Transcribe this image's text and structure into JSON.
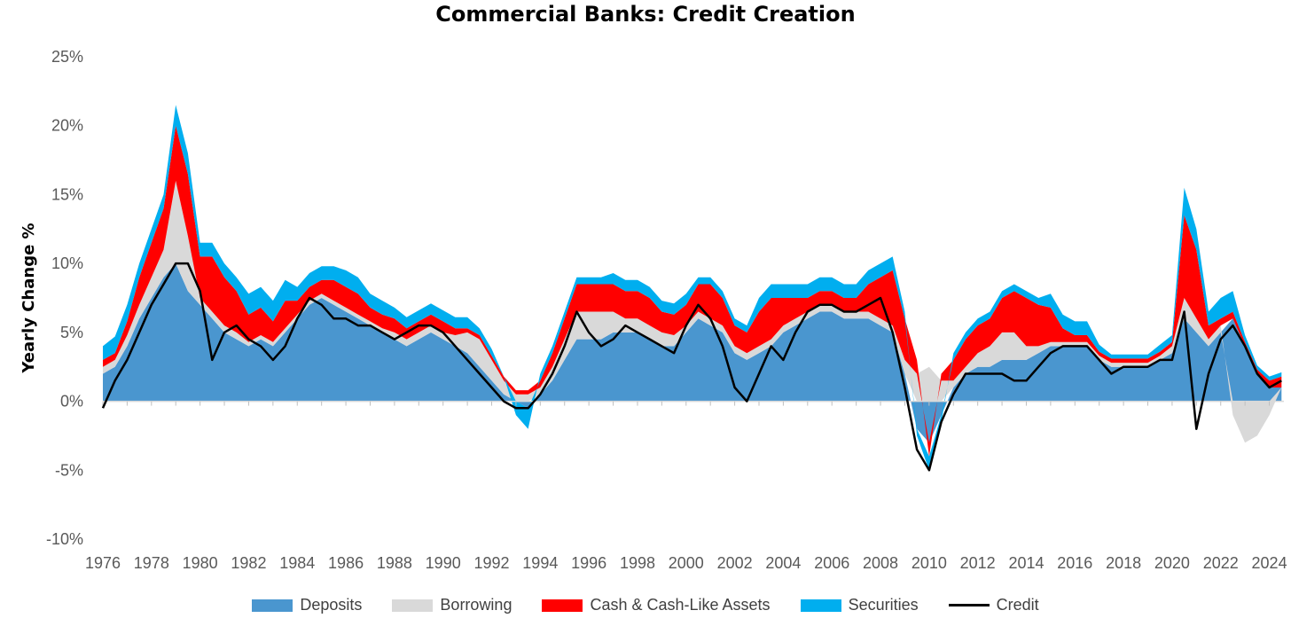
{
  "chart_data": {
    "type": "area",
    "title": "Commercial Banks: Credit Creation",
    "ylabel": "Yearly Change %",
    "xlabel": "",
    "xlim": [
      1976,
      2024.6
    ],
    "ylim": [
      -10,
      25
    ],
    "x_ticks": [
      "1976",
      "1978",
      "1980",
      "1982",
      "1984",
      "1986",
      "1988",
      "1990",
      "1992",
      "1994",
      "1996",
      "1998",
      "2000",
      "2002",
      "2004",
      "2006",
      "2008",
      "2010",
      "2012",
      "2014",
      "2016",
      "2018",
      "2020",
      "2022",
      "2024"
    ],
    "y_ticks": [
      "-10%",
      "-5%",
      "0%",
      "5%",
      "10%",
      "15%",
      "20%",
      "25%"
    ],
    "legend_position": "bottom",
    "colors": {
      "Deposits": "#4a96cf",
      "Borrowing": "#d9d9d9",
      "Cash & Cash-Like Assets": "#ff0000",
      "Securities": "#00aeef",
      "Credit": "#000000"
    },
    "x": [
      1976.0,
      1976.5,
      1977.0,
      1977.5,
      1978.0,
      1978.5,
      1979.0,
      1979.5,
      1980.0,
      1980.5,
      1981.0,
      1981.5,
      1982.0,
      1982.5,
      1983.0,
      1983.5,
      1984.0,
      1984.5,
      1985.0,
      1985.5,
      1986.0,
      1986.5,
      1987.0,
      1987.5,
      1988.0,
      1988.5,
      1989.0,
      1989.5,
      1990.0,
      1990.5,
      1991.0,
      1991.5,
      1992.0,
      1992.5,
      1993.0,
      1993.5,
      1994.0,
      1994.5,
      1995.0,
      1995.5,
      1996.0,
      1996.5,
      1997.0,
      1997.5,
      1998.0,
      1998.5,
      1999.0,
      1999.5,
      2000.0,
      2000.5,
      2001.0,
      2001.5,
      2002.0,
      2002.5,
      2003.0,
      2003.5,
      2004.0,
      2004.5,
      2005.0,
      2005.5,
      2006.0,
      2006.5,
      2007.0,
      2007.5,
      2008.0,
      2008.5,
      2009.0,
      2009.5,
      2010.0,
      2010.5,
      2011.0,
      2011.5,
      2012.0,
      2012.5,
      2013.0,
      2013.5,
      2014.0,
      2014.5,
      2015.0,
      2015.5,
      2016.0,
      2016.5,
      2017.0,
      2017.5,
      2018.0,
      2018.5,
      2019.0,
      2019.5,
      2020.0,
      2020.5,
      2021.0,
      2021.5,
      2022.0,
      2022.5,
      2023.0,
      2023.5,
      2024.0,
      2024.5
    ],
    "series": [
      {
        "name": "Deposits",
        "values": [
          2.0,
          2.5,
          4.0,
          6.0,
          7.5,
          9.0,
          10.0,
          8.0,
          7.0,
          6.0,
          5.0,
          4.5,
          4.0,
          4.5,
          4.0,
          5.0,
          6.0,
          7.0,
          7.5,
          7.0,
          6.5,
          6.0,
          5.5,
          5.0,
          4.5,
          4.0,
          4.5,
          5.0,
          4.5,
          4.0,
          3.5,
          2.5,
          1.5,
          0.5,
          0.0,
          -0.5,
          0.5,
          1.5,
          3.0,
          4.5,
          4.5,
          4.5,
          5.0,
          5.0,
          5.0,
          4.5,
          4.0,
          4.0,
          5.0,
          6.0,
          5.5,
          5.0,
          3.5,
          3.0,
          3.5,
          4.0,
          5.0,
          5.5,
          6.0,
          6.5,
          6.5,
          6.0,
          6.0,
          6.0,
          5.5,
          5.0,
          2.0,
          -2.0,
          -3.0,
          -1.0,
          1.0,
          2.0,
          2.5,
          2.5,
          3.0,
          3.0,
          3.0,
          3.5,
          4.0,
          4.0,
          4.0,
          4.0,
          3.0,
          2.5,
          2.5,
          2.5,
          2.5,
          3.0,
          3.5,
          6.0,
          5.0,
          4.0,
          5.0,
          6.0,
          4.0,
          2.0,
          1.0,
          1.0
        ]
      },
      {
        "name": "Borrowing",
        "values": [
          0.5,
          0.5,
          0.8,
          1.0,
          1.5,
          2.0,
          6.0,
          4.0,
          0.5,
          0.5,
          0.5,
          0.5,
          0.3,
          0.3,
          0.3,
          0.3,
          0.3,
          0.3,
          0.3,
          0.3,
          0.3,
          0.3,
          0.3,
          0.3,
          0.5,
          0.5,
          0.5,
          0.5,
          0.5,
          0.8,
          1.5,
          2.0,
          1.5,
          1.0,
          0.5,
          0.5,
          0.5,
          1.0,
          1.5,
          2.0,
          2.0,
          2.0,
          1.5,
          1.0,
          1.0,
          1.0,
          1.0,
          0.8,
          0.5,
          0.5,
          0.5,
          0.5,
          0.5,
          0.5,
          0.5,
          0.5,
          0.5,
          0.5,
          0.5,
          0.5,
          0.5,
          0.5,
          0.5,
          0.5,
          0.5,
          0.5,
          1.0,
          2.0,
          2.5,
          1.5,
          0.5,
          0.5,
          1.0,
          1.5,
          2.0,
          2.0,
          1.0,
          0.5,
          0.3,
          0.3,
          0.3,
          0.3,
          0.3,
          0.3,
          0.3,
          0.3,
          0.3,
          0.3,
          0.5,
          1.5,
          1.0,
          0.5,
          0.5,
          -1.0,
          -3.0,
          -2.5,
          -1.0,
          0.0
        ]
      },
      {
        "name": "Cash & Cash-Like Assets",
        "values": [
          0.5,
          0.5,
          1.0,
          2.0,
          2.5,
          3.0,
          4.0,
          4.5,
          3.0,
          4.0,
          3.5,
          3.0,
          2.0,
          2.0,
          1.5,
          2.0,
          1.0,
          1.0,
          1.0,
          1.5,
          1.5,
          1.5,
          1.0,
          1.0,
          1.0,
          0.8,
          0.8,
          0.8,
          0.8,
          0.5,
          0.3,
          0.3,
          0.3,
          0.3,
          0.3,
          0.3,
          0.5,
          1.0,
          1.5,
          2.0,
          2.0,
          2.0,
          2.0,
          2.0,
          2.0,
          2.0,
          1.5,
          1.5,
          1.5,
          2.0,
          2.5,
          2.0,
          1.5,
          1.5,
          2.5,
          3.0,
          2.0,
          1.5,
          1.0,
          1.0,
          1.0,
          1.0,
          1.0,
          2.0,
          3.0,
          4.0,
          3.0,
          1.0,
          -1.0,
          0.5,
          1.5,
          2.0,
          2.0,
          2.0,
          2.5,
          3.0,
          3.5,
          3.0,
          2.5,
          1.0,
          0.5,
          0.5,
          0.3,
          0.3,
          0.3,
          0.3,
          0.3,
          0.3,
          0.3,
          6.0,
          5.0,
          1.0,
          0.5,
          0.5,
          0.3,
          0.3,
          0.5,
          0.8
        ]
      },
      {
        "name": "Securities",
        "values": [
          1.0,
          1.2,
          1.2,
          1.0,
          1.0,
          1.0,
          1.5,
          1.5,
          1.0,
          1.0,
          1.0,
          1.0,
          1.5,
          1.5,
          1.5,
          1.5,
          1.0,
          1.0,
          1.0,
          1.0,
          1.2,
          1.2,
          1.0,
          1.0,
          0.8,
          0.8,
          0.8,
          0.8,
          0.8,
          0.8,
          0.8,
          0.5,
          0.5,
          0.0,
          -1.0,
          -1.5,
          0.5,
          0.5,
          0.5,
          0.5,
          0.5,
          0.5,
          0.8,
          0.8,
          0.8,
          0.8,
          0.8,
          0.8,
          0.8,
          0.5,
          0.5,
          0.5,
          0.5,
          0.5,
          1.0,
          1.0,
          1.0,
          1.0,
          1.0,
          1.0,
          1.0,
          1.0,
          1.0,
          1.0,
          1.0,
          1.0,
          0.5,
          -0.5,
          -1.0,
          -0.5,
          0.5,
          0.5,
          0.5,
          0.5,
          0.5,
          0.5,
          0.5,
          0.5,
          1.0,
          1.0,
          1.0,
          1.0,
          0.5,
          0.3,
          0.3,
          0.3,
          0.3,
          0.5,
          0.5,
          2.0,
          1.5,
          1.0,
          1.5,
          1.5,
          0.5,
          0.3,
          0.3,
          0.3
        ]
      },
      {
        "name": "Credit",
        "values": [
          -0.5,
          1.5,
          3.0,
          5.0,
          7.0,
          8.5,
          10.0,
          10.0,
          8.0,
          3.0,
          5.0,
          5.5,
          4.5,
          4.0,
          3.0,
          4.0,
          6.0,
          7.5,
          7.0,
          6.0,
          6.0,
          5.5,
          5.5,
          5.0,
          4.5,
          5.0,
          5.5,
          5.5,
          5.0,
          4.0,
          3.0,
          2.0,
          1.0,
          0.0,
          -0.5,
          -0.5,
          0.5,
          2.0,
          4.0,
          6.5,
          5.0,
          4.0,
          4.5,
          5.5,
          5.0,
          4.5,
          4.0,
          3.5,
          5.5,
          7.0,
          6.0,
          4.0,
          1.0,
          0.0,
          2.0,
          4.0,
          3.0,
          5.0,
          6.5,
          7.0,
          7.0,
          6.5,
          6.5,
          7.0,
          7.5,
          5.0,
          1.0,
          -3.5,
          -5.0,
          -1.5,
          0.5,
          2.0,
          2.0,
          2.0,
          2.0,
          1.5,
          1.5,
          2.5,
          3.5,
          4.0,
          4.0,
          4.0,
          3.0,
          2.0,
          2.5,
          2.5,
          2.5,
          3.0,
          3.0,
          6.5,
          -2.0,
          2.0,
          4.5,
          5.5,
          4.0,
          2.0,
          1.0,
          1.5
        ]
      }
    ]
  }
}
